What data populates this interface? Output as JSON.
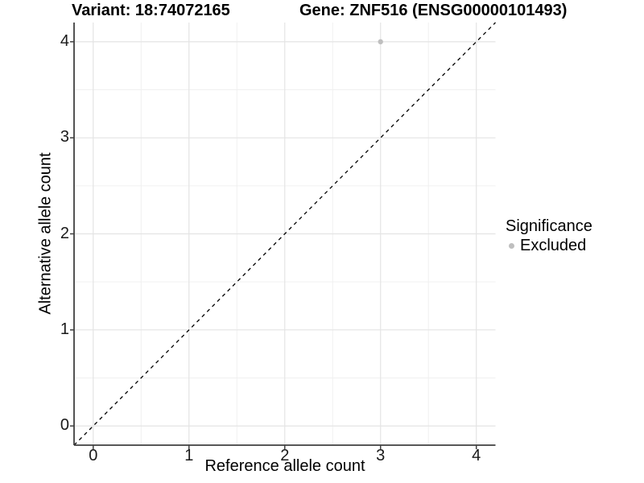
{
  "header": {
    "variant_title": "Variant: 18:74072165",
    "gene_title": "Gene: ZNF516 (ENSG00000101493)"
  },
  "axes": {
    "x_label": "Reference allele count",
    "y_label": "Alternative allele count"
  },
  "legend": {
    "title": "Significance",
    "position": "right",
    "items": [
      {
        "label": "Excluded",
        "color": "#bfbfbf"
      }
    ]
  },
  "chart_data": {
    "type": "scatter",
    "title_left": "Variant: 18:74072165",
    "title_right": "Gene: ZNF516 (ENSG00000101493)",
    "xlabel": "Reference allele count",
    "ylabel": "Alternative allele count",
    "xlim": [
      -0.2,
      4.2
    ],
    "ylim": [
      -0.2,
      4.2
    ],
    "x_ticks": [
      0,
      1,
      2,
      3,
      4
    ],
    "y_ticks": [
      0,
      1,
      2,
      3,
      4
    ],
    "minor_gridlines_x": [
      0.5,
      1.5,
      2.5,
      3.5
    ],
    "minor_gridlines_y": [
      0.5,
      1.5,
      2.5,
      3.5
    ],
    "grid": true,
    "points": [
      {
        "x": 3,
        "y": 4,
        "series": "Excluded",
        "color": "#bfbfbf"
      }
    ],
    "identity_line": {
      "from": -0.2,
      "to": 4.2,
      "style": "dashed",
      "color": "#000000"
    },
    "legend_position": "right",
    "colors": {
      "panel_background": "#ffffff",
      "major_grid": "#e4e4e4",
      "minor_grid": "#f0f0f0",
      "axis_line": "#404040",
      "tick_text": "#1a1a1a",
      "point_excluded": "#bfbfbf"
    }
  }
}
